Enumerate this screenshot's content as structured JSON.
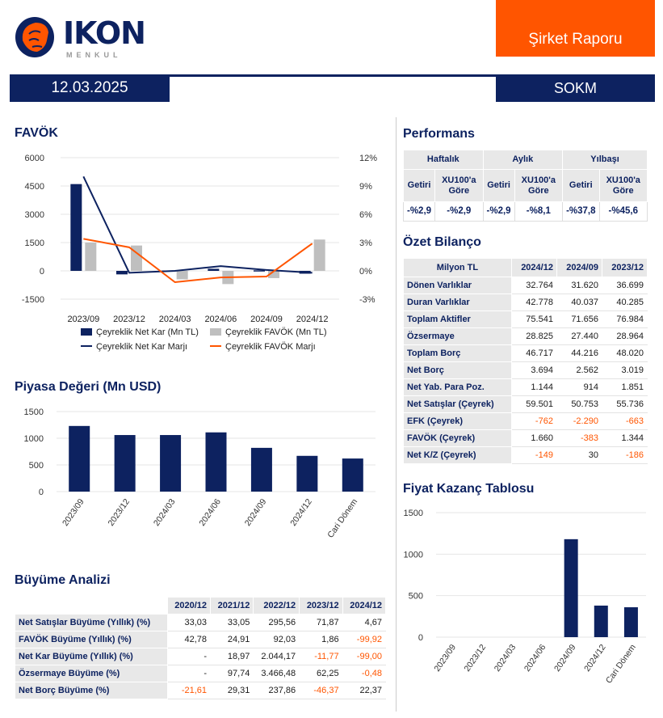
{
  "header": {
    "logo_text": "IKON",
    "logo_sub": "MENKUL",
    "report_type": "Şirket Raporu",
    "date": "12.03.2025",
    "ticker": "SOKM"
  },
  "colors": {
    "navy": "#0d2260",
    "orange": "#ff5500",
    "gray": "#bfbfbf"
  },
  "favok": {
    "title": "FAVÖK"
  },
  "market_cap": {
    "title": "Piyasa Değeri (Mn USD)"
  },
  "growth": {
    "title": "Büyüme Analizi",
    "columns": [
      "",
      "2020/12",
      "2021/12",
      "2022/12",
      "2023/12",
      "2024/12"
    ],
    "rows": [
      {
        "label": "Net Satışlar Büyüme (Yıllık) (%)",
        "values": [
          "33,03",
          "33,05",
          "295,56",
          "71,87",
          "4,67"
        ]
      },
      {
        "label": "FAVÖK Büyüme (Yıllık) (%)",
        "values": [
          "42,78",
          "24,91",
          "92,03",
          "1,86",
          "-99,92"
        ]
      },
      {
        "label": "Net Kar Büyüme (Yıllık) (%)",
        "values": [
          "-",
          "18,97",
          "2.044,17",
          "-11,77",
          "-99,00"
        ]
      },
      {
        "label": "Özsermaye Büyüme (%)",
        "values": [
          "-",
          "97,74",
          "3.466,48",
          "62,25",
          "-0,48"
        ]
      },
      {
        "label": "Net Borç Büyüme (%)",
        "values": [
          "-21,61",
          "29,31",
          "237,86",
          "-46,37",
          "22,37"
        ]
      }
    ]
  },
  "performance": {
    "title": "Performans",
    "groups": [
      "Haftalık",
      "Aylık",
      "Yılbaşı"
    ],
    "subheaders": [
      "Getiri",
      "XU100'a Göre",
      "Getiri",
      "XU100'a Göre",
      "Getiri",
      "XU100'a Göre"
    ],
    "values": [
      "-%2,9",
      "-%2,9",
      "-%2,9",
      "-%8,1",
      "-%37,8",
      "-%45,6"
    ]
  },
  "balance": {
    "title": "Özet Bilanço",
    "columns": [
      "Milyon TL",
      "2024/12",
      "2024/09",
      "2023/12"
    ],
    "rows": [
      {
        "label": "Dönen Varlıklar",
        "values": [
          "32.764",
          "31.620",
          "36.699"
        ]
      },
      {
        "label": "Duran Varlıklar",
        "values": [
          "42.778",
          "40.037",
          "40.285"
        ]
      },
      {
        "label": "Toplam Aktifler",
        "values": [
          "75.541",
          "71.656",
          "76.984"
        ]
      },
      {
        "label": "Özsermaye",
        "values": [
          "28.825",
          "27.440",
          "28.964"
        ]
      },
      {
        "label": "Toplam Borç",
        "values": [
          "46.717",
          "44.216",
          "48.020"
        ]
      },
      {
        "label": "Net Borç",
        "values": [
          "3.694",
          "2.562",
          "3.019"
        ]
      },
      {
        "label": "Net Yab. Para Poz.",
        "values": [
          "1.144",
          "914",
          "1.851"
        ]
      },
      {
        "label": "Net Satışlar (Çeyrek)",
        "values": [
          "59.501",
          "50.753",
          "55.736"
        ]
      },
      {
        "label": "EFK (Çeyrek)",
        "values": [
          "-762",
          "-2.290",
          "-663"
        ]
      },
      {
        "label": "FAVÖK (Çeyrek)",
        "values": [
          "1.660",
          "-383",
          "1.344"
        ]
      },
      {
        "label": "Net K/Z (Çeyrek)",
        "values": [
          "-149",
          "30",
          "-186"
        ]
      }
    ]
  },
  "pe": {
    "title": "Fiyat Kazanç Tablosu"
  },
  "chart_data": [
    {
      "type": "bar+line",
      "categories": [
        "2023/09",
        "2023/12",
        "2024/03",
        "2024/06",
        "2024/09",
        "2024/12"
      ],
      "ylim": [
        -1500,
        6000
      ],
      "yticks": [
        "6000",
        "4500",
        "3000",
        "1500",
        "0",
        "-1500"
      ],
      "y2lim": [
        -3,
        12
      ],
      "y2ticks": [
        "12%",
        "9%",
        "6%",
        "3%",
        "0%",
        "-3%"
      ],
      "series": [
        {
          "name": "Çeyreklik Net Kar (Mn TL)",
          "kind": "bar",
          "color": "#0d2260",
          "values": [
            4600,
            -186,
            20,
            110,
            30,
            -149
          ]
        },
        {
          "name": "Çeyreklik FAVÖK (Mn TL)",
          "kind": "bar",
          "color": "#bfbfbf",
          "values": [
            1500,
            1344,
            -450,
            -700,
            -383,
            1660
          ]
        },
        {
          "name": "Çeyreklik Net Kar Marjı",
          "kind": "line",
          "axis": "right",
          "color": "#0d2260",
          "values": [
            10.0,
            -0.2,
            0.0,
            0.5,
            0.1,
            -0.2
          ]
        },
        {
          "name": "Çeyreklik FAVÖK Marjı",
          "kind": "line",
          "axis": "right",
          "color": "#ff5500",
          "values": [
            3.4,
            2.5,
            -1.2,
            -0.7,
            -0.6,
            2.9
          ]
        }
      ],
      "legend": "bottom",
      "grid": true
    },
    {
      "type": "bar",
      "categories": [
        "2023/09",
        "2023/12",
        "2024/03",
        "2024/06",
        "2024/09",
        "2024/12",
        "Cari Dönem"
      ],
      "values": [
        1230,
        1060,
        1060,
        1110,
        820,
        670,
        620
      ],
      "ylim": [
        0,
        1500
      ],
      "yticks": [
        "1500",
        "1000",
        "500",
        "0"
      ],
      "grid": true
    },
    {
      "type": "bar",
      "categories": [
        "2023/09",
        "2023/12",
        "2024/03",
        "2024/06",
        "2024/09",
        "2024/12",
        "Cari Dönem"
      ],
      "values": [
        0,
        0,
        0,
        0,
        1180,
        380,
        360
      ],
      "ylim": [
        0,
        1500
      ],
      "yticks": [
        "1500",
        "1000",
        "500",
        "0"
      ],
      "grid": true
    }
  ]
}
